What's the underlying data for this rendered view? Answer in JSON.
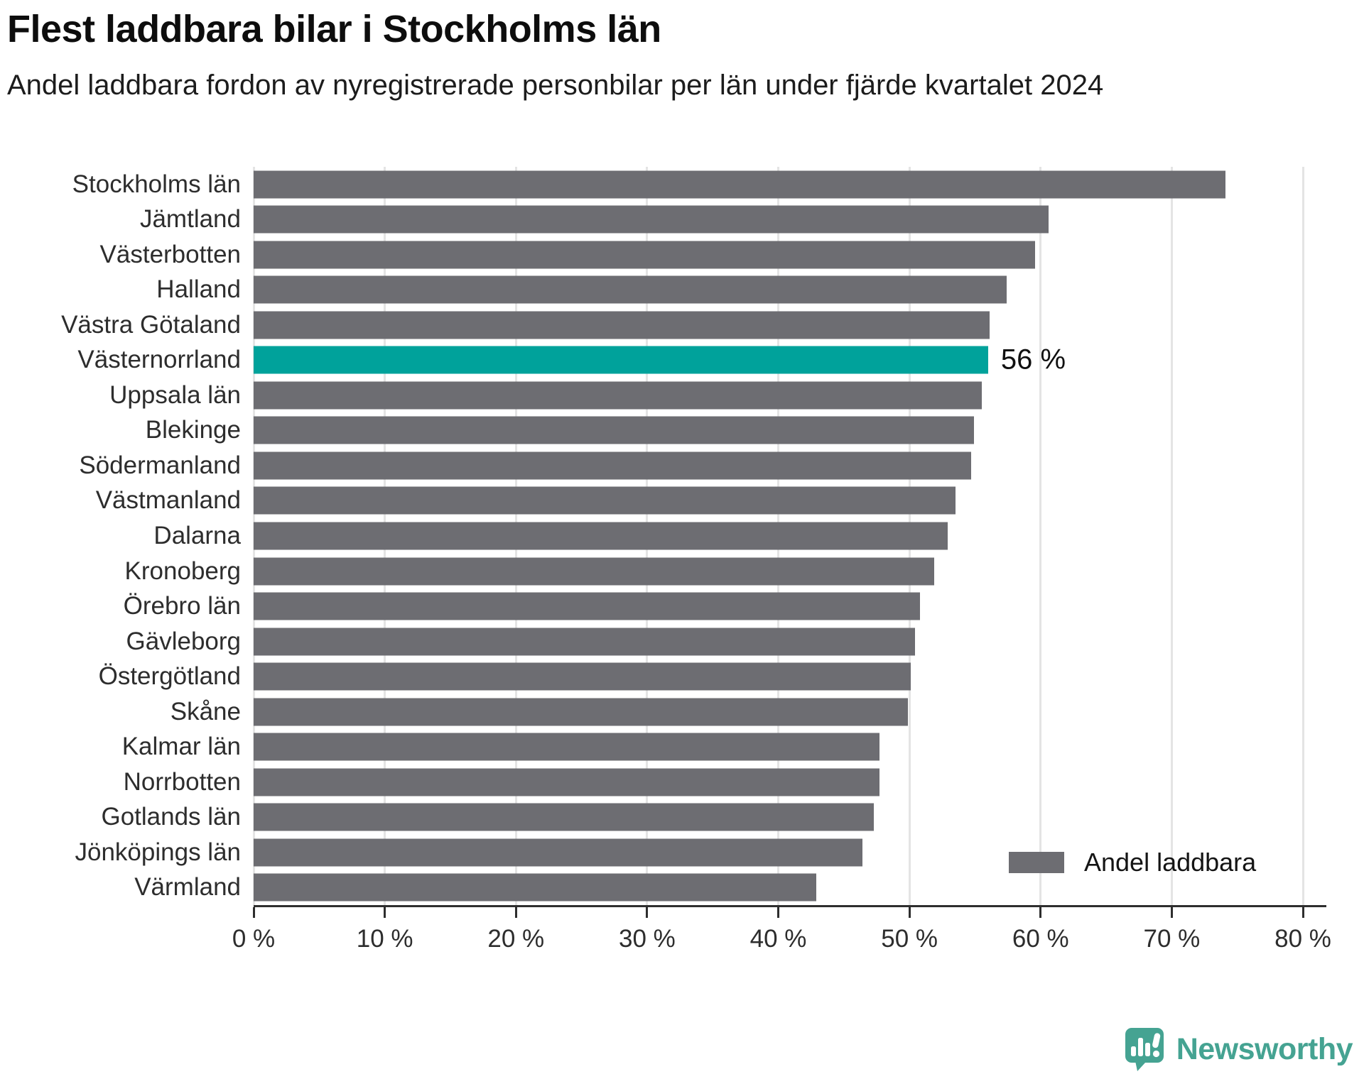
{
  "chart_data": {
    "type": "bar",
    "orientation": "horizontal",
    "title": "Flest laddbara bilar i Stockholms län",
    "subtitle": "Andel laddbara fordon av nyregistrerade personbilar per län under fjärde kvartalet 2024",
    "unit": "%",
    "categories": [
      "Stockholms län",
      "Jämtland",
      "Västerbotten",
      "Halland",
      "Västra Götaland",
      "Västernorrland",
      "Uppsala län",
      "Blekinge",
      "Södermanland",
      "Västmanland",
      "Dalarna",
      "Kronoberg",
      "Örebro län",
      "Gävleborg",
      "Östergötland",
      "Skåne",
      "Kalmar län",
      "Norrbotten",
      "Gotlands län",
      "Jönköpings län",
      "Värmland"
    ],
    "values": [
      74.1,
      60.6,
      59.6,
      57.4,
      56.1,
      56,
      55.5,
      54.9,
      54.7,
      53.5,
      52.9,
      51.9,
      50.8,
      50.4,
      50.1,
      49.9,
      47.7,
      47.7,
      47.3,
      46.4,
      42.9
    ],
    "highlight": {
      "category": "Västernorrland",
      "label": "56 %"
    },
    "xlim": [
      0,
      80
    ],
    "x_ticks": [
      0,
      10,
      20,
      30,
      40,
      50,
      60,
      70,
      80
    ],
    "x_tick_labels": [
      "0 %",
      "10 %",
      "20 %",
      "30 %",
      "40 %",
      "50 %",
      "60 %",
      "70 %",
      "80 %"
    ],
    "grid": "vertical",
    "legend": {
      "label": "Andel laddbara",
      "position": "bottom-right"
    },
    "colors": {
      "bar": "#6d6d72",
      "highlight": "#00a29b"
    }
  },
  "branding": {
    "logo_text": "Newsworthy",
    "logo_icon": "speech-bubble-bar-chart-icon",
    "logo_color": "#45a392"
  }
}
